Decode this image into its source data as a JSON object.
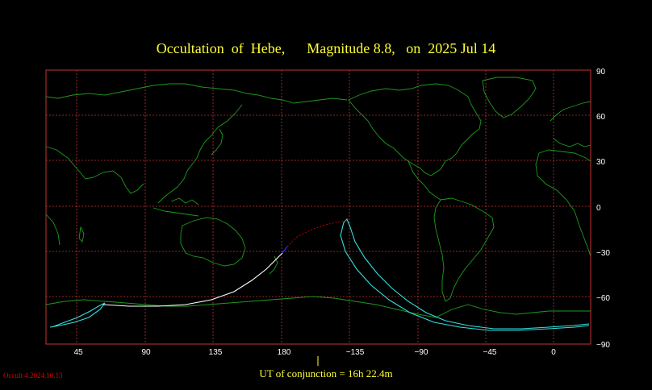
{
  "title": {
    "object": "Occultation  of  Hebe,",
    "magnitude": "Magnitude 8.8,",
    "date": "on  2025 Jul 14"
  },
  "conjunction_label": "UT of conjunction = 16h 22.4m",
  "version_label": "Occult 4.2024.10.13",
  "axes": {
    "longitude_ticks": [
      "45",
      "90",
      "135",
      "180",
      "−135",
      "−90",
      "−45",
      "0"
    ],
    "latitude_ticks": [
      "90",
      "60",
      "30",
      "0",
      "−30",
      "−60",
      "−90"
    ]
  },
  "colors": {
    "background": "#000000",
    "grid": "#c83232",
    "coastline": "#1f9a1f",
    "path_limits": "#33e0e0",
    "central_line_day": "#ffffff",
    "central_line_twilight": "#3333ff",
    "central_line_night": "#c00000",
    "title": "#ffff33",
    "version": "#e00000"
  }
}
